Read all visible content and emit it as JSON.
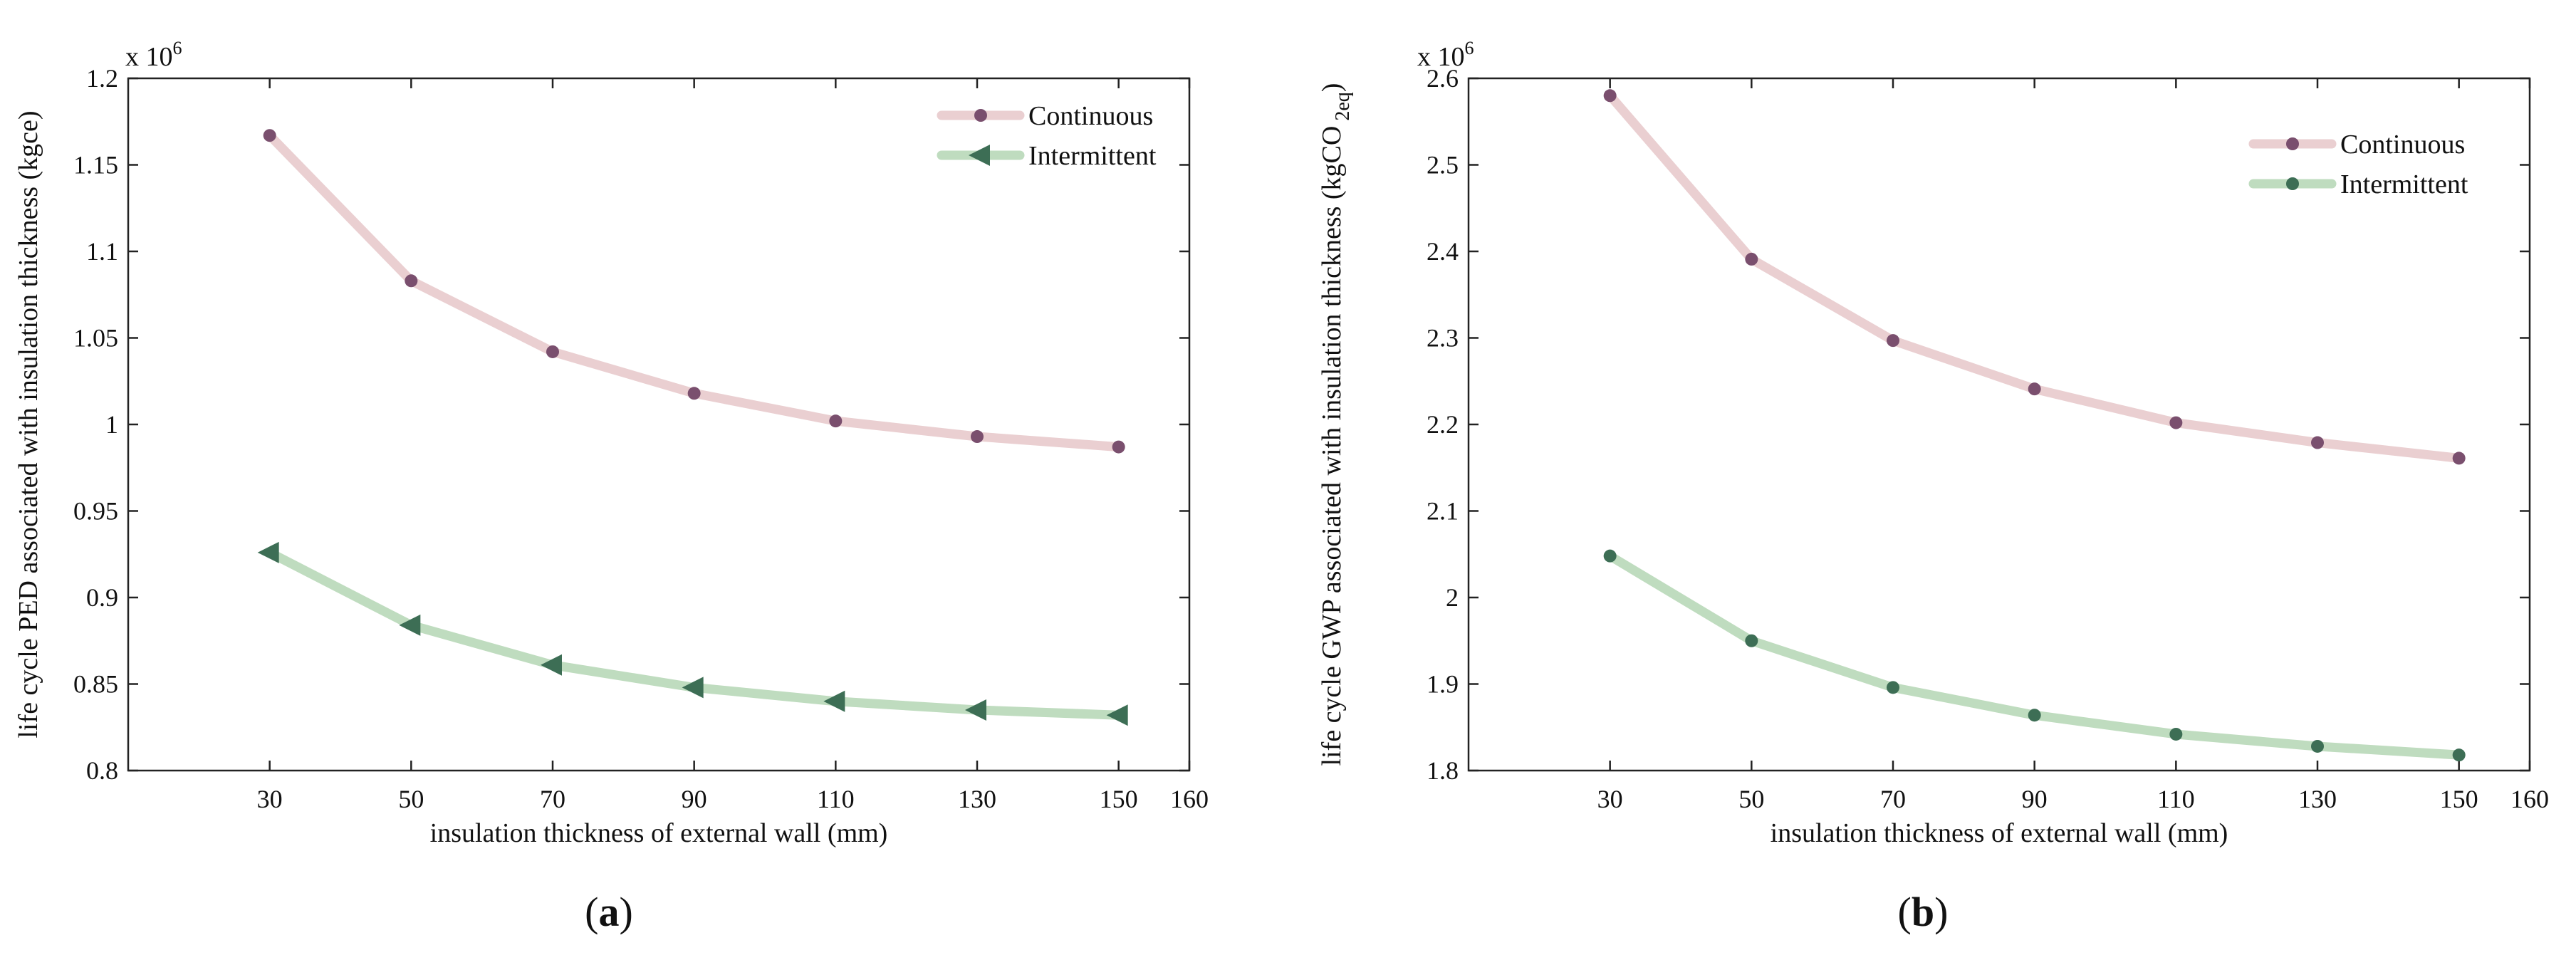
{
  "chart_data": [
    {
      "type": "line",
      "panel_label": "(a)",
      "xlabel": "insulation thickness of external wall (mm)",
      "ylabel": "life cycle PED associated with insulation thickness (kgce)",
      "y_exponent": "x 10",
      "y_exponent_power": "6",
      "xlim": [
        10,
        160
      ],
      "ylim": [
        0.8,
        1.2
      ],
      "x_ticks": [
        "30",
        "50",
        "70",
        "90",
        "110",
        "130",
        "150",
        "160"
      ],
      "x_tick_values": [
        30,
        50,
        70,
        90,
        110,
        130,
        150,
        160
      ],
      "y_ticks": [
        "0.8",
        "0.85",
        "0.9",
        "0.95",
        "1",
        "1.05",
        "1.1",
        "1.15",
        "1.2"
      ],
      "y_tick_values": [
        0.8,
        0.85,
        0.9,
        0.95,
        1.0,
        1.05,
        1.1,
        1.15,
        1.2
      ],
      "x": [
        30,
        50,
        70,
        90,
        110,
        130,
        150
      ],
      "legend_position": "top-right",
      "series": [
        {
          "name": "Continuous",
          "values": [
            1.167,
            1.083,
            1.042,
            1.018,
            1.002,
            0.993,
            0.987
          ],
          "line_color": "#eacfd1",
          "marker_color": "#7a4f6e",
          "marker": "circle"
        },
        {
          "name": "Intermittent",
          "values": [
            0.926,
            0.884,
            0.861,
            0.848,
            0.84,
            0.835,
            0.832
          ],
          "line_color": "#bfdcbf",
          "marker_color": "#3d6e55",
          "marker": "triangle-left"
        }
      ]
    },
    {
      "type": "line",
      "panel_label": "(b)",
      "xlabel": "insulation thickness of external wall (mm)",
      "ylabel": "life cycle GWP associated with insulation thickness (kgCO",
      "ylabel_subscript": "2eq",
      "ylabel_close": ")",
      "y_exponent": "x 10",
      "y_exponent_power": "6",
      "xlim": [
        10,
        160
      ],
      "ylim": [
        1.8,
        2.6
      ],
      "x_ticks": [
        "30",
        "50",
        "70",
        "90",
        "110",
        "130",
        "150",
        "160"
      ],
      "x_tick_values": [
        30,
        50,
        70,
        90,
        110,
        130,
        150,
        160
      ],
      "y_ticks": [
        "1.8",
        "1.9",
        "2",
        "2.1",
        "2.2",
        "2.3",
        "2.4",
        "2.5",
        "2.6"
      ],
      "y_tick_values": [
        1.8,
        1.9,
        2.0,
        2.1,
        2.2,
        2.3,
        2.4,
        2.5,
        2.6
      ],
      "x": [
        30,
        50,
        70,
        90,
        110,
        130,
        150
      ],
      "legend_position": "top-right",
      "series": [
        {
          "name": "Continuous",
          "values": [
            2.58,
            2.391,
            2.297,
            2.241,
            2.202,
            2.179,
            2.161
          ],
          "line_color": "#eacfd1",
          "marker_color": "#7a4f6e",
          "marker": "circle"
        },
        {
          "name": "Intermittent",
          "values": [
            2.048,
            1.95,
            1.896,
            1.864,
            1.842,
            1.828,
            1.818
          ],
          "line_color": "#bfdcbf",
          "marker_color": "#3d6e55",
          "marker": "circle"
        }
      ]
    }
  ]
}
